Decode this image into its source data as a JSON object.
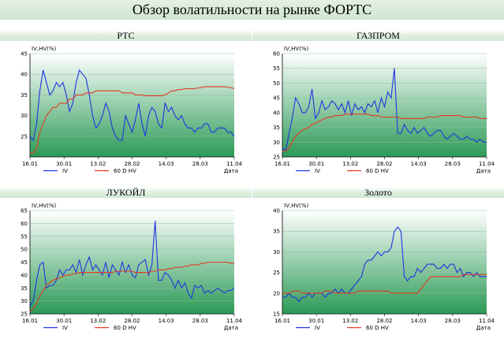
{
  "page": {
    "title": "Обзор волатильности на рынке ФОРТС"
  },
  "colors": {
    "iv": "#1f35e0",
    "hv": "#e23a22",
    "plot_top": "#ffffff",
    "plot_bottom": "#2b9a56",
    "header_bg": "#d8ead8"
  },
  "chart_data": [
    {
      "type": "line",
      "title": "РТС",
      "ylabel": "IV,HV(%)",
      "xlabel": "Дата",
      "x_ticks": [
        "16.01",
        "30.01",
        "13.02",
        "28.02",
        "14.03",
        "28.03",
        "11.04"
      ],
      "y_ticks": [
        "25",
        "30",
        "35",
        "40",
        "45"
      ],
      "ylim": [
        20,
        45
      ],
      "legend": [
        "IV",
        "60 D HV"
      ],
      "series": [
        {
          "name": "IV",
          "values": [
            25,
            24,
            28,
            36,
            41,
            38,
            35,
            36,
            38,
            37,
            38,
            35,
            31,
            33,
            38,
            41,
            40,
            39,
            35,
            30,
            27,
            28,
            30,
            33,
            31,
            27,
            25,
            24,
            24,
            30,
            28,
            26,
            29,
            33,
            28,
            25,
            30,
            32,
            31,
            28,
            27,
            33,
            31,
            32,
            30,
            29,
            30,
            28,
            27,
            27,
            26,
            27,
            27,
            28,
            28,
            26,
            26,
            27,
            27,
            27,
            26,
            26,
            25
          ]
        },
        {
          "name": "60 D HV",
          "values": [
            21,
            21,
            22,
            26,
            28,
            30,
            31,
            32,
            32,
            33,
            33,
            33,
            34,
            34,
            35,
            35,
            35,
            35.5,
            35.5,
            35.5,
            36,
            36,
            36,
            36,
            36,
            36,
            36,
            36,
            35.5,
            35.5,
            35.5,
            35.5,
            35,
            35,
            35,
            34.8,
            34.8,
            34.8,
            34.8,
            34.8,
            34.8,
            35,
            35.5,
            36,
            36,
            36.3,
            36.3,
            36.5,
            36.5,
            36.5,
            36.5,
            36.7,
            36.8,
            37,
            37,
            37,
            37,
            37,
            37,
            37,
            36.8,
            36.8,
            36.5
          ]
        }
      ]
    },
    {
      "type": "line",
      "title": "ГАЗПРОМ",
      "ylabel": "IV,HV(%)",
      "xlabel": "Дата",
      "x_ticks": [
        "16.01",
        "30.01",
        "13.02",
        "28.02",
        "14.03",
        "28.03",
        "11.04"
      ],
      "y_ticks": [
        "25",
        "30",
        "35",
        "40",
        "45",
        "50",
        "55",
        "60"
      ],
      "ylim": [
        25,
        60
      ],
      "legend": [
        "IV",
        "60 D HV"
      ],
      "series": [
        {
          "name": "IV",
          "values": [
            28,
            27,
            33,
            38,
            45,
            43,
            40,
            40,
            42,
            48,
            38,
            40,
            44,
            41,
            42,
            44,
            43,
            41,
            43,
            40,
            44,
            39,
            43,
            41,
            42,
            40,
            43,
            42,
            44,
            40,
            45,
            42,
            47,
            45,
            55,
            33,
            33,
            36,
            34,
            33,
            35,
            33,
            34,
            35,
            33,
            32,
            33,
            34,
            34,
            32,
            31,
            32,
            33,
            32,
            31,
            31,
            32,
            31,
            31,
            30,
            31,
            30,
            30
          ]
        },
        {
          "name": "60 D HV",
          "values": [
            27,
            27,
            28,
            30,
            32,
            33,
            34,
            34.5,
            35,
            36,
            36.5,
            37,
            37.5,
            38,
            38.5,
            38.5,
            39,
            39,
            39,
            39.5,
            39.5,
            39.5,
            39.5,
            39.5,
            39.5,
            39.5,
            39.5,
            39,
            39,
            39,
            38.5,
            38.5,
            38.5,
            38.5,
            38.5,
            38.5,
            38,
            38,
            38,
            38,
            38,
            38,
            38,
            38,
            38.5,
            38.5,
            38.5,
            38.5,
            39,
            39,
            39,
            39,
            39,
            39,
            39,
            38.5,
            38.5,
            38.5,
            38.5,
            38.5,
            38,
            38,
            38
          ]
        }
      ]
    },
    {
      "type": "line",
      "title": "ЛУКОЙЛ",
      "ylabel": "IV,HV(%)",
      "xlabel": "Дата",
      "x_ticks": [
        "16.01",
        "30.01",
        "13.02",
        "28.02",
        "14.03",
        "28.03",
        "11.04"
      ],
      "y_ticks": [
        "25",
        "30",
        "35",
        "40",
        "45",
        "50",
        "55",
        "60",
        "65"
      ],
      "ylim": [
        25,
        65
      ],
      "legend": [
        "IV",
        "60 D HV"
      ],
      "series": [
        {
          "name": "IV",
          "values": [
            28,
            30,
            38,
            44,
            45,
            35,
            36,
            36,
            38,
            42,
            40,
            42,
            42,
            44,
            41,
            46,
            40,
            44,
            47,
            42,
            44,
            42,
            40,
            45,
            39,
            44,
            42,
            40,
            45,
            41,
            44,
            40,
            39,
            44,
            45,
            46,
            40,
            44,
            61,
            38,
            38,
            41,
            40,
            38,
            35,
            38,
            35,
            37,
            33,
            31,
            36,
            35,
            36,
            33,
            34,
            33,
            34,
            35,
            34,
            33,
            34,
            34,
            35
          ]
        },
        {
          "name": "60 D HV",
          "values": [
            26,
            27,
            29,
            32,
            34,
            36,
            37,
            38,
            38.5,
            39,
            39.5,
            40,
            40,
            40.5,
            40.5,
            41,
            41,
            41,
            41,
            41,
            41,
            41,
            41,
            41,
            41,
            41,
            41.5,
            41.5,
            41.5,
            41.5,
            41.5,
            41.5,
            41,
            41,
            41,
            41,
            41,
            41.5,
            41.5,
            42,
            42,
            42,
            42.5,
            42.5,
            43,
            43,
            43,
            43.5,
            43.5,
            44,
            44,
            44,
            44.5,
            44.5,
            45,
            45,
            45,
            45,
            45,
            45,
            45,
            44.5,
            44.5
          ]
        }
      ]
    },
    {
      "type": "line",
      "title": "Золото",
      "ylabel": "IV,HV(%)",
      "xlabel": "Дата",
      "x_ticks": [
        "16.01",
        "30.01",
        "13.02",
        "28.02",
        "14.03",
        "28.03",
        "11.04"
      ],
      "y_ticks": [
        "15",
        "20",
        "25",
        "30",
        "35",
        "40"
      ],
      "ylim": [
        15,
        40
      ],
      "legend": [
        "IV",
        "60 D HV"
      ],
      "series": [
        {
          "name": "IV",
          "values": [
            19,
            19,
            20,
            19,
            19,
            18,
            19,
            19,
            20,
            19,
            20,
            20,
            20,
            19,
            20,
            20,
            21,
            20,
            21,
            20,
            20,
            21,
            22,
            23,
            24,
            27,
            28,
            28,
            29,
            30,
            29,
            30,
            30,
            31,
            35,
            36,
            35,
            24,
            23,
            24,
            24,
            26,
            25,
            26,
            27,
            27,
            27,
            26,
            26,
            27,
            26,
            27,
            27,
            25,
            26,
            24,
            25,
            25,
            24,
            25,
            24,
            24,
            24
          ]
        },
        {
          "name": "60 D HV",
          "values": [
            20,
            20,
            20,
            20.5,
            20.5,
            20.5,
            20,
            20,
            20,
            20,
            20,
            20,
            20,
            20.5,
            20.5,
            20.5,
            20,
            20,
            20,
            20,
            20,
            20,
            20,
            20.5,
            20.5,
            20.5,
            20.5,
            20.5,
            20.5,
            20.5,
            20.5,
            20.5,
            20.5,
            20,
            20,
            20,
            20,
            20,
            20,
            20,
            20,
            20,
            21,
            22,
            23,
            24,
            24,
            24,
            24,
            24,
            24,
            24,
            24,
            24,
            24,
            24.5,
            24.5,
            24.5,
            24.5,
            24.5,
            24.5,
            24.5,
            24.5
          ]
        }
      ]
    }
  ]
}
